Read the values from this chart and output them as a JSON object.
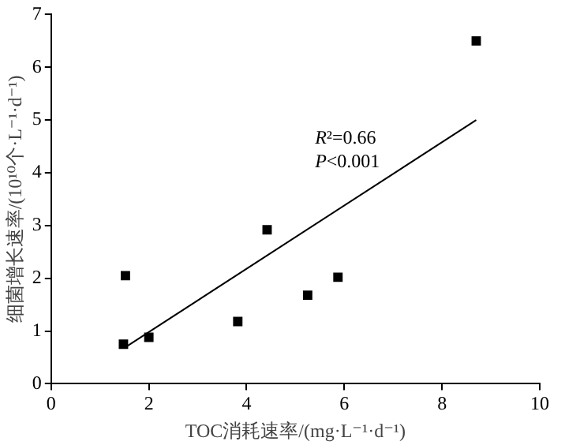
{
  "chart_data": {
    "type": "scatter",
    "xlabel": "TOC消耗速率/(mg·L⁻¹·d⁻¹)",
    "ylabel": "细菌增长速率/(10¹⁰个·L⁻¹·d⁻¹)",
    "series": [
      {
        "color": "#000000",
        "marker": "square",
        "x": [
          1.48,
          1.52,
          2.0,
          3.82,
          4.42,
          5.25,
          5.87,
          8.7
        ],
        "values": [
          0.75,
          2.05,
          0.88,
          1.18,
          2.92,
          1.68,
          2.02,
          6.5
        ]
      },
      {
        "type": "line",
        "color": "#000000",
        "marker": "none",
        "line_style": "solid",
        "x": [
          1.5,
          8.7
        ],
        "values": [
          0.68,
          5.0
        ]
      }
    ],
    "annotations": [
      "R²=0.66",
      "P<0.001"
    ],
    "xlim": [
      0,
      10
    ],
    "xticks": [
      0,
      2,
      4,
      6,
      8,
      10
    ],
    "ylim": [
      0,
      7
    ],
    "yticks": [
      0,
      1,
      2,
      3,
      4,
      5,
      6,
      7
    ],
    "grid": false,
    "legend": false
  }
}
